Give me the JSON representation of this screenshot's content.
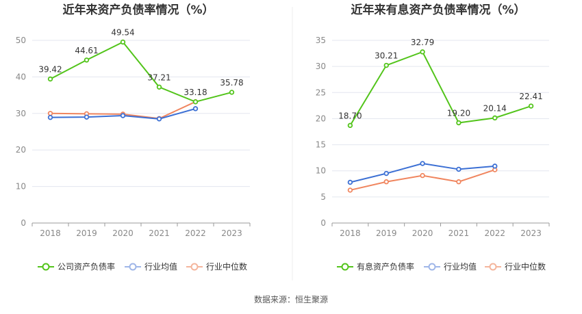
{
  "source": "数据来源：恒生聚源",
  "legend": {
    "left": {
      "main": "公司资产负债率",
      "avg": "行业均值",
      "median": "行业中位数"
    },
    "right": {
      "main": "有息资产负债率",
      "avg": "行业均值",
      "median": "行业中位数"
    }
  },
  "colors": {
    "main": "#52c41a",
    "avg": "#3b6fd4",
    "median": "#f0855e",
    "grid": "#e3e6ef"
  },
  "chart_data": [
    {
      "type": "line",
      "title": "近年来资产负债率情况（%）",
      "categories": [
        "2018",
        "2019",
        "2020",
        "2021",
        "2022",
        "2023"
      ],
      "yticks": [
        "0",
        "10",
        "20",
        "30",
        "40",
        "50"
      ],
      "ylim": [
        0,
        50
      ],
      "grid": true,
      "legend_position": "bottom",
      "series": [
        {
          "name": "公司资产负债率",
          "key": "main",
          "values": [
            39.42,
            44.61,
            49.54,
            37.21,
            33.18,
            35.78
          ],
          "labels": [
            "39.42",
            "44.61",
            "49.54",
            "37.21",
            "33.18",
            "35.78"
          ]
        },
        {
          "name": "行业均值",
          "key": "avg",
          "values": [
            28.9,
            29.0,
            29.4,
            28.5,
            31.3,
            null
          ]
        },
        {
          "name": "行业中位数",
          "key": "median",
          "values": [
            30.0,
            29.9,
            29.8,
            28.6,
            33.2,
            null
          ]
        }
      ]
    },
    {
      "type": "line",
      "title": "近年来有息资产负债率情况（%）",
      "categories": [
        "2018",
        "2019",
        "2020",
        "2021",
        "2022",
        "2023"
      ],
      "yticks": [
        "0",
        "5",
        "10",
        "15",
        "20",
        "25",
        "30",
        "35"
      ],
      "ylim": [
        0,
        35
      ],
      "grid": true,
      "legend_position": "bottom",
      "series": [
        {
          "name": "有息资产负债率",
          "key": "main",
          "values": [
            18.7,
            30.21,
            32.79,
            19.2,
            20.14,
            22.41
          ],
          "labels": [
            "18.70",
            "30.21",
            "32.79",
            "19.20",
            "20.14",
            "22.41"
          ]
        },
        {
          "name": "行业均值",
          "key": "avg",
          "values": [
            7.8,
            9.5,
            11.4,
            10.3,
            10.9,
            null
          ]
        },
        {
          "name": "行业中位数",
          "key": "median",
          "values": [
            6.3,
            7.9,
            9.1,
            7.9,
            10.2,
            null
          ]
        }
      ]
    }
  ]
}
